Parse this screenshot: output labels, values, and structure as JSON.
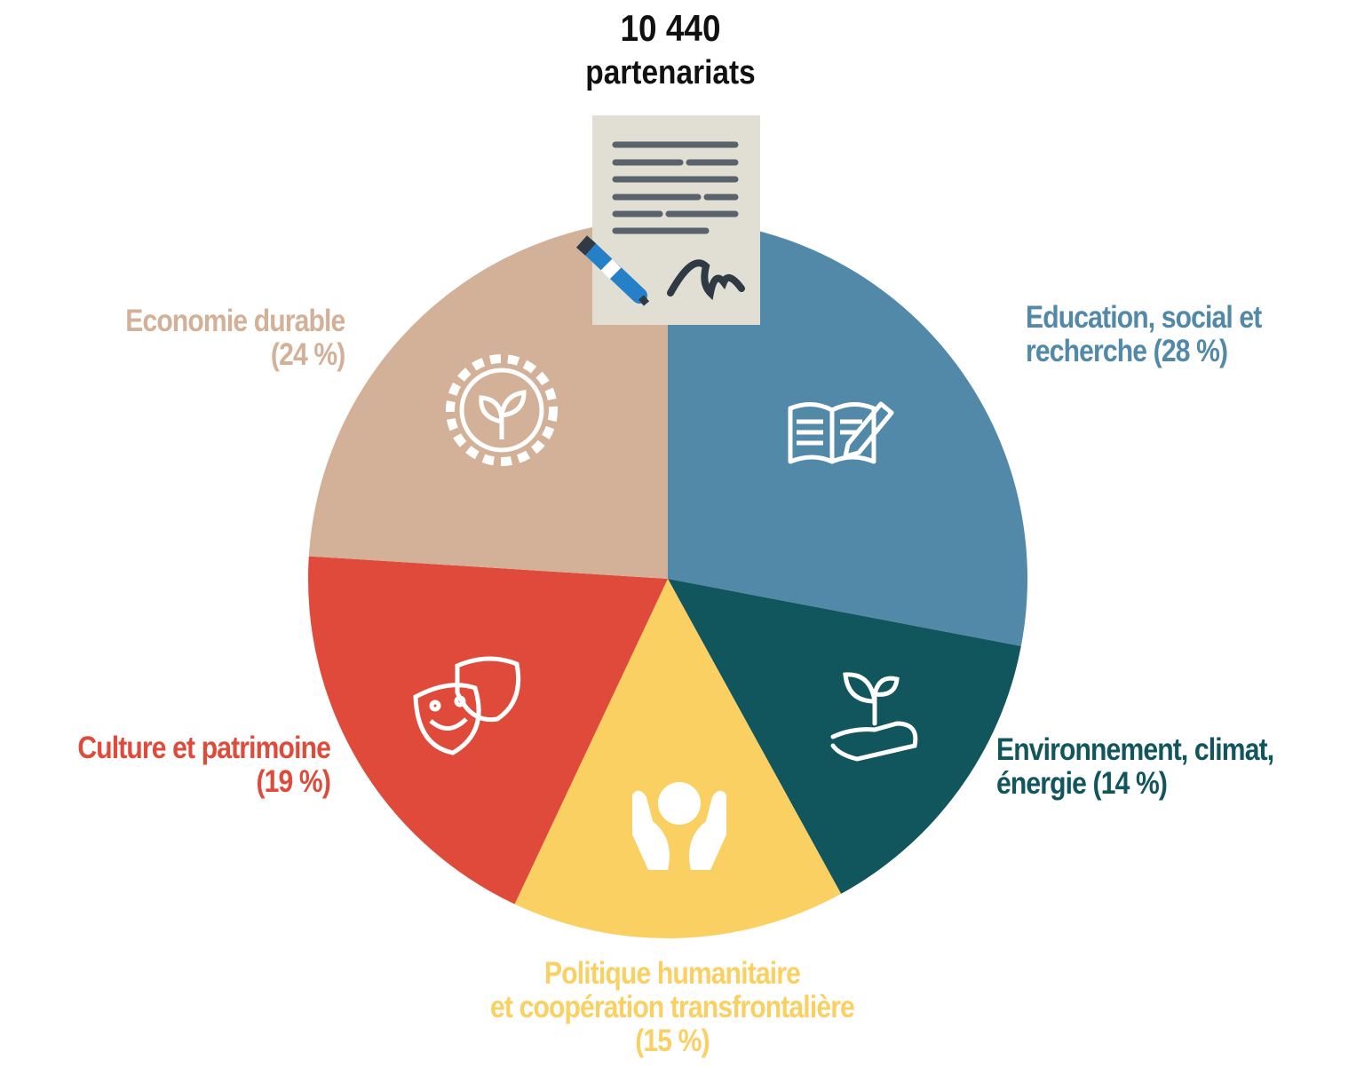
{
  "chart_data": {
    "type": "pie",
    "title": "10 440",
    "subtitle": "partenariats",
    "start": "top",
    "direction": "clockwise",
    "slices": [
      {
        "label_lines": [
          "Education, social et",
          "recherche (28 %)"
        ],
        "value": 28,
        "color": "#5289a8",
        "icon": "book-pencil-icon"
      },
      {
        "label_lines": [
          "Environnement, climat,",
          "énergie (14 %)"
        ],
        "value": 14,
        "color": "#12565d",
        "icon": "hand-plant-icon"
      },
      {
        "label_lines": [
          "Politique humanitaire",
          "et coopération transfrontalière",
          "(15 %)"
        ],
        "value": 15,
        "color": "#fbd062",
        "icon": "hands-person-icon"
      },
      {
        "label_lines": [
          "Culture et patrimoine",
          "(19 %)"
        ],
        "value": 19,
        "color": "#e04a3a",
        "icon": "theater-masks-icon"
      },
      {
        "label_lines": [
          "Economie durable",
          "(24 %)"
        ],
        "value": 24,
        "color": "#d3b098",
        "icon": "gear-plant-icon"
      }
    ],
    "center_icon": "signed-document-icon"
  }
}
